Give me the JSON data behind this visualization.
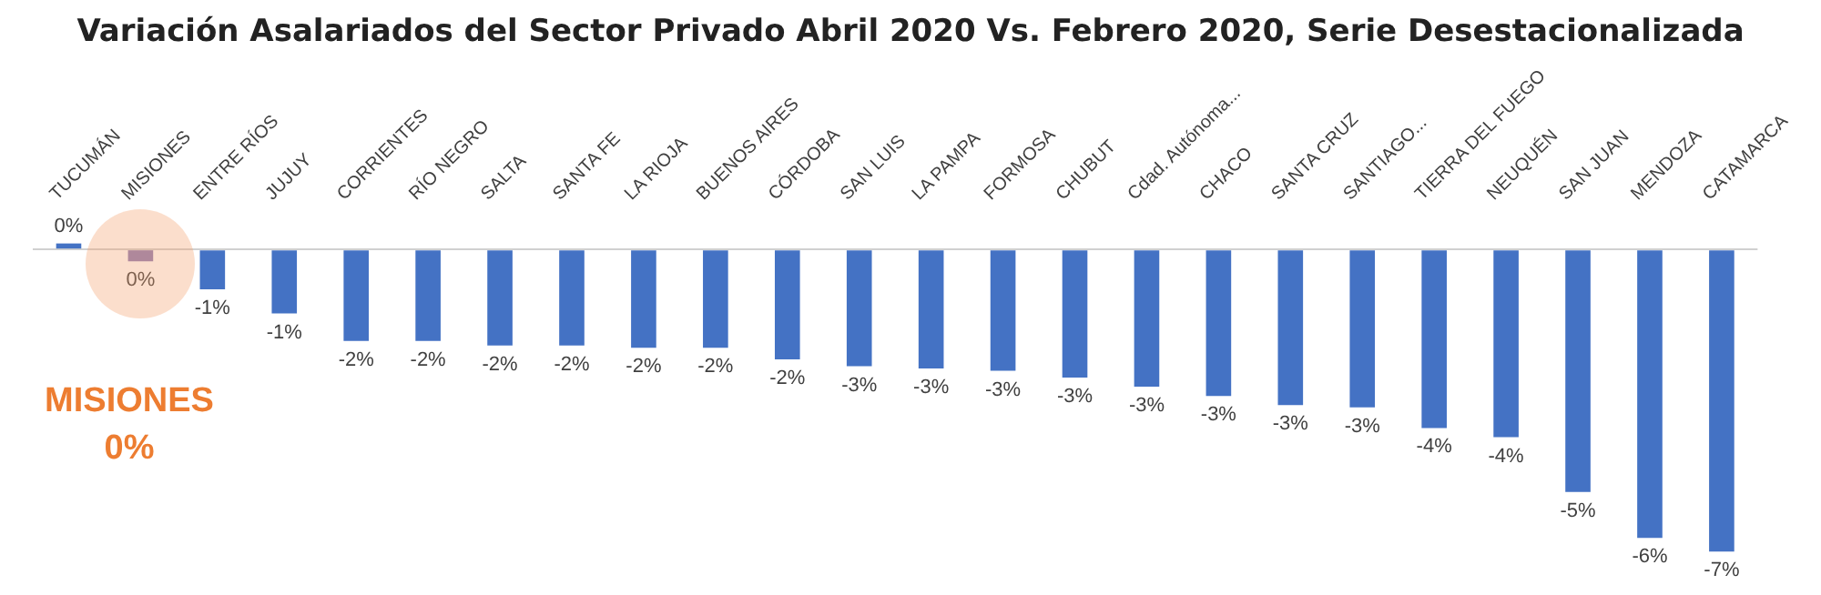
{
  "chart_data": {
    "type": "bar",
    "title": "Variación Asalariados del Sector Privado Abril 2020 Vs. Febrero 2020, Serie Desestacionalizada",
    "categories": [
      "TUCUMÁN",
      "MISIONES",
      "ENTRE RÍOS",
      "JUJUY",
      "CORRIENTES",
      "RÍO NEGRO",
      "SALTA",
      "SANTA FE",
      "LA RIOJA",
      "BUENOS AIRES",
      "CÓRDOBA",
      "SAN LUIS",
      "LA PAMPA",
      "FORMOSA",
      "CHUBUT",
      "Cdad. Autónoma...",
      "CHACO",
      "SANTA CRUZ",
      "SANTIAGO...",
      "TIERRA DEL FUEGO",
      "NEUQUÉN",
      "SAN JUAN",
      "MENDOZA",
      "CATAMARCA"
    ],
    "values": [
      0.13,
      -0.26,
      -0.87,
      -1.4,
      -2.0,
      -2.0,
      -2.1,
      -2.1,
      -2.15,
      -2.15,
      -2.4,
      -2.55,
      -2.6,
      -2.65,
      -2.8,
      -3.0,
      -3.2,
      -3.4,
      -3.45,
      -3.9,
      -4.1,
      -5.3,
      -6.3,
      -6.6
    ],
    "value_labels": [
      "0%",
      "0%",
      "-1%",
      "-1%",
      "-2%",
      "-2%",
      "-2%",
      "-2%",
      "-2%",
      "-2%",
      "-2%",
      "-3%",
      "-3%",
      "-3%",
      "-3%",
      "-3%",
      "-3%",
      "-3%",
      "-3%",
      "-4%",
      "-4%",
      "-5%",
      "-6%",
      "-7%"
    ],
    "colors": [
      "#4472c4",
      "#8a7bb4",
      "#4472c4",
      "#4472c4",
      "#4472c4",
      "#4472c4",
      "#4472c4",
      "#4472c4",
      "#4472c4",
      "#4472c4",
      "#4472c4",
      "#4472c4",
      "#4472c4",
      "#4472c4",
      "#4472c4",
      "#4472c4",
      "#4472c4",
      "#4472c4",
      "#4472c4",
      "#4472c4",
      "#4472c4",
      "#4472c4",
      "#4472c4",
      "#4472c4"
    ],
    "annotations": [
      "MISIONES 0%"
    ]
  }
}
